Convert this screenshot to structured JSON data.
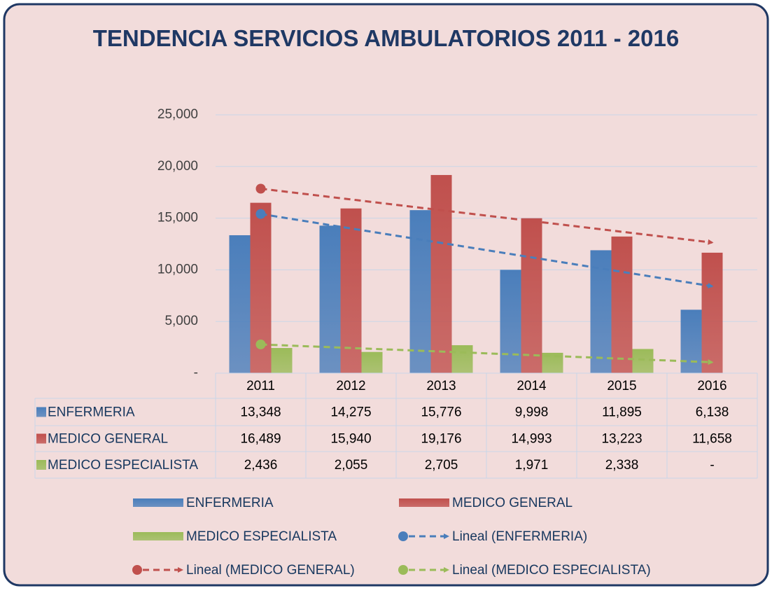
{
  "chart_data": {
    "type": "bar",
    "title": "TENDENCIA SERVICIOS AMBULATORIOS 2011 - 2016",
    "categories": [
      "2011",
      "2012",
      "2013",
      "2014",
      "2015",
      "2016"
    ],
    "series": [
      {
        "name": "ENFERMERIA",
        "color": "#4a7ebb",
        "values": [
          13348,
          14275,
          15776,
          9998,
          11895,
          6138
        ],
        "value_labels": [
          "13,348",
          "14,275",
          "15,776",
          "9,998",
          "11,895",
          "6,138"
        ],
        "trendline": "Lineal (ENFERMERIA)"
      },
      {
        "name": "MEDICO GENERAL",
        "color": "#c0504d",
        "values": [
          16489,
          15940,
          19176,
          14993,
          13223,
          11658
        ],
        "value_labels": [
          "16,489",
          "15,940",
          "19,176",
          "14,993",
          "13,223",
          "11,658"
        ],
        "trendline": "Lineal (MEDICO GENERAL)"
      },
      {
        "name": "MEDICO ESPECIALISTA",
        "color": "#9bbb59",
        "values": [
          2436,
          2055,
          2705,
          1971,
          2338,
          0
        ],
        "value_labels": [
          "2,436",
          "2,055",
          "2,705",
          "1,971",
          "2,338",
          "-"
        ],
        "trendline": "Lineal (MEDICO ESPECIALISTA)"
      }
    ],
    "ylim": [
      0,
      25000
    ],
    "yticks": [
      {
        "value": 0,
        "label": "-"
      },
      {
        "value": 5000,
        "label": "5,000"
      },
      {
        "value": 10000,
        "label": "10,000"
      },
      {
        "value": 15000,
        "label": "15,000"
      },
      {
        "value": 20000,
        "label": "20,000"
      },
      {
        "value": 25000,
        "label": "25,000"
      }
    ],
    "grid": true,
    "data_table": true
  }
}
